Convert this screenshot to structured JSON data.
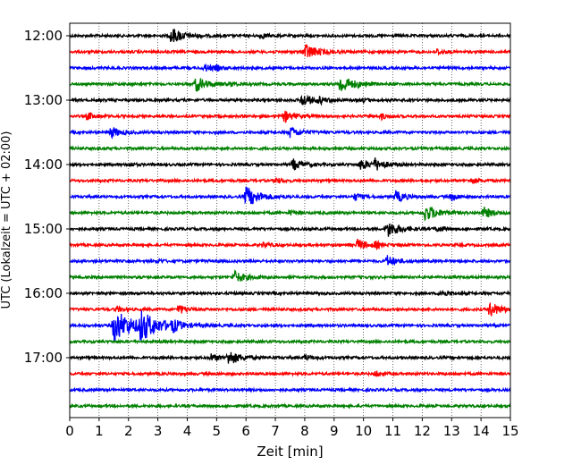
{
  "chart_data": {
    "type": "line",
    "title": "",
    "xlabel": "Zeit  [min]",
    "ylabel": "UTC (Lokalzeit = UTC + 02:00)",
    "xlim": [
      0,
      15
    ],
    "x_ticks": [
      "0",
      "1",
      "2",
      "3",
      "4",
      "5",
      "6",
      "7",
      "8",
      "9",
      "10",
      "11",
      "12",
      "13",
      "14",
      "15"
    ],
    "y_ticks": [
      "12:00",
      "13:00",
      "14:00",
      "15:00",
      "16:00",
      "17:00"
    ],
    "grid": "vertical dotted",
    "legend": "none",
    "trace_colors": [
      "#000000",
      "#ff0000",
      "#0000ff",
      "#008000"
    ],
    "traces": [
      {
        "start": "12:00",
        "events": [
          [
            3.45,
            9
          ],
          [
            6.5,
            3
          ]
        ]
      },
      {
        "start": "12:15",
        "events": [
          [
            8.0,
            9
          ],
          [
            12.5,
            3
          ]
        ]
      },
      {
        "start": "12:30",
        "events": [
          [
            4.6,
            4
          ],
          [
            5.0,
            2
          ]
        ]
      },
      {
        "start": "12:45",
        "events": [
          [
            4.3,
            8
          ],
          [
            9.2,
            10
          ],
          [
            5.5,
            2
          ]
        ]
      },
      {
        "start": "13:00",
        "events": [
          [
            7.9,
            7
          ],
          [
            8.5,
            3
          ],
          [
            10.0,
            2
          ]
        ]
      },
      {
        "start": "13:15",
        "events": [
          [
            0.6,
            4
          ],
          [
            7.3,
            6
          ],
          [
            10.6,
            3
          ]
        ]
      },
      {
        "start": "13:30",
        "events": [
          [
            1.4,
            6
          ],
          [
            7.5,
            6
          ]
        ]
      },
      {
        "start": "13:45",
        "events": []
      },
      {
        "start": "14:00",
        "events": [
          [
            7.6,
            6
          ],
          [
            9.9,
            6
          ],
          [
            10.4,
            6
          ],
          [
            2.0,
            2
          ]
        ]
      },
      {
        "start": "14:15",
        "events": [
          [
            7.0,
            3
          ],
          [
            13.7,
            3
          ]
        ]
      },
      {
        "start": "14:30",
        "events": [
          [
            6.0,
            11
          ],
          [
            9.7,
            4
          ],
          [
            11.1,
            6
          ],
          [
            13.0,
            4
          ]
        ]
      },
      {
        "start": "14:45",
        "events": [
          [
            12.1,
            9
          ],
          [
            14.1,
            6
          ],
          [
            7.5,
            2
          ]
        ]
      },
      {
        "start": "15:00",
        "events": [
          [
            10.8,
            9
          ],
          [
            12.5,
            3
          ]
        ]
      },
      {
        "start": "15:15",
        "events": [
          [
            9.8,
            6
          ],
          [
            6.6,
            3
          ],
          [
            10.4,
            3
          ]
        ]
      },
      {
        "start": "15:30",
        "events": [
          [
            10.8,
            6
          ],
          [
            3.0,
            2
          ]
        ]
      },
      {
        "start": "15:45",
        "events": [
          [
            5.6,
            7
          ]
        ]
      },
      {
        "start": "16:00",
        "events": [
          [
            12.6,
            4
          ]
        ]
      },
      {
        "start": "16:15",
        "events": [
          [
            3.7,
            5
          ],
          [
            14.3,
            8
          ],
          [
            1.6,
            3
          ]
        ]
      },
      {
        "start": "16:30",
        "events": [
          [
            1.5,
            18
          ],
          [
            2.4,
            14
          ],
          [
            3.5,
            5
          ]
        ]
      },
      {
        "start": "16:45",
        "events": []
      },
      {
        "start": "17:00",
        "events": [
          [
            5.4,
            8
          ],
          [
            4.8,
            4
          ],
          [
            8.0,
            3
          ]
        ]
      },
      {
        "start": "17:15",
        "events": [
          [
            10.4,
            3
          ]
        ]
      },
      {
        "start": "17:30",
        "events": []
      },
      {
        "start": "17:45",
        "events": []
      }
    ]
  }
}
